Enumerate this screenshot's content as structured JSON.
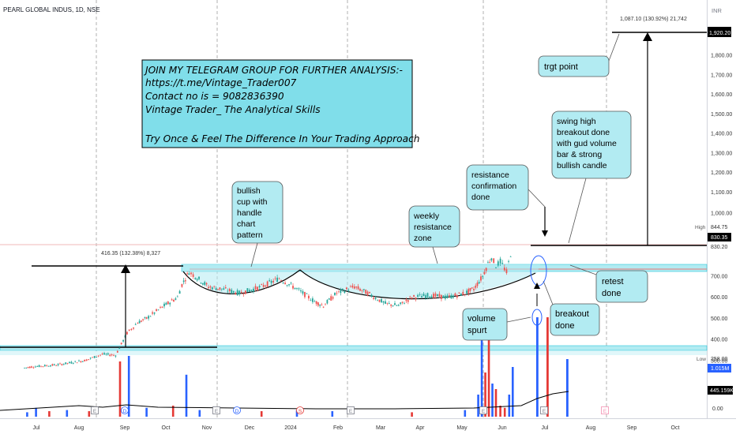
{
  "header": {
    "symbol": "PEARL GLOBAL INDUS, 1D, NSE",
    "currency": "INR"
  },
  "chart_data": {
    "type": "candlestick",
    "y_ticks": [
      "1,800.00",
      "1,700.00",
      "1,600.00",
      "1,500.00",
      "1,400.00",
      "1,300.00",
      "1,200.00",
      "1,100.00",
      "1,000.00",
      "700.00",
      "600.00",
      "500.00",
      "400.00",
      "300.00"
    ],
    "x_ticks": [
      "Jul",
      "Aug",
      "Sep",
      "Oct",
      "Nov",
      "Dec",
      "2024",
      "Feb",
      "Mar",
      "Apr",
      "May",
      "Jun",
      "Jul",
      "Aug",
      "Sep",
      "Oct"
    ],
    "ylim": [
      250,
      2000
    ],
    "volume_tick": "0.00",
    "price_series": [
      {
        "d": -8,
        "p": 265
      },
      {
        "d": 0,
        "p": 270
      },
      {
        "d": 30,
        "p": 280
      },
      {
        "d": 60,
        "p": 300
      },
      {
        "d": 80,
        "p": 330
      },
      {
        "d": 95,
        "p": 325
      },
      {
        "d": 108,
        "p": 430
      },
      {
        "d": 120,
        "p": 480
      },
      {
        "d": 130,
        "p": 500
      },
      {
        "d": 150,
        "p": 560
      },
      {
        "d": 165,
        "p": 600
      },
      {
        "d": 170,
        "p": 660
      },
      {
        "d": 178,
        "p": 720
      },
      {
        "d": 185,
        "p": 700
      },
      {
        "d": 200,
        "p": 650
      },
      {
        "d": 215,
        "p": 640
      },
      {
        "d": 235,
        "p": 620
      },
      {
        "d": 260,
        "p": 650
      },
      {
        "d": 280,
        "p": 690
      },
      {
        "d": 300,
        "p": 640
      },
      {
        "d": 320,
        "p": 580
      },
      {
        "d": 330,
        "p": 560
      },
      {
        "d": 345,
        "p": 620
      },
      {
        "d": 365,
        "p": 650
      },
      {
        "d": 380,
        "p": 620
      },
      {
        "d": 400,
        "p": 570
      },
      {
        "d": 415,
        "p": 560
      },
      {
        "d": 430,
        "p": 600
      },
      {
        "d": 450,
        "p": 610
      },
      {
        "d": 470,
        "p": 600
      },
      {
        "d": 490,
        "p": 620
      },
      {
        "d": 500,
        "p": 640
      },
      {
        "d": 510,
        "p": 700
      },
      {
        "d": 516,
        "p": 760
      },
      {
        "d": 520,
        "p": 790
      },
      {
        "d": 525,
        "p": 750
      },
      {
        "d": 530,
        "p": 770
      },
      {
        "d": 537,
        "p": 720
      },
      {
        "d": 544,
        "p": 850
      }
    ],
    "volume_bars": [
      {
        "d": -5,
        "v": 4,
        "c": "blue"
      },
      {
        "d": 5,
        "v": 8,
        "c": "blue"
      },
      {
        "d": 20,
        "v": 5,
        "c": "red"
      },
      {
        "d": 40,
        "v": 6,
        "c": "blue"
      },
      {
        "d": 65,
        "v": 5,
        "c": "red"
      },
      {
        "d": 100,
        "v": 50,
        "c": "red"
      },
      {
        "d": 110,
        "v": 55,
        "c": "blue"
      },
      {
        "d": 130,
        "v": 8,
        "c": "blue"
      },
      {
        "d": 160,
        "v": 10,
        "c": "red"
      },
      {
        "d": 175,
        "v": 38,
        "c": "blue"
      },
      {
        "d": 190,
        "v": 6,
        "c": "blue"
      },
      {
        "d": 260,
        "v": 5,
        "c": "red"
      },
      {
        "d": 300,
        "v": 6,
        "c": "blue"
      },
      {
        "d": 340,
        "v": 5,
        "c": "blue"
      },
      {
        "d": 430,
        "v": 4,
        "c": "red"
      },
      {
        "d": 490,
        "v": 6,
        "c": "blue"
      },
      {
        "d": 505,
        "v": 20,
        "c": "blue"
      },
      {
        "d": 509,
        "v": 80,
        "c": "blue"
      },
      {
        "d": 513,
        "v": 40,
        "c": "red"
      },
      {
        "d": 517,
        "v": 80,
        "c": "red"
      },
      {
        "d": 521,
        "v": 30,
        "c": "blue"
      },
      {
        "d": 525,
        "v": 25,
        "c": "red"
      },
      {
        "d": 530,
        "v": 10,
        "c": "red"
      },
      {
        "d": 535,
        "v": 8,
        "c": "red"
      },
      {
        "d": 540,
        "v": 20,
        "c": "blue"
      },
      {
        "d": 544,
        "v": 45,
        "c": "blue"
      }
    ],
    "levels": {
      "target": "1,920.20",
      "high_label": "High",
      "high_value": "844.75",
      "box_upper": "830.35",
      "box_lower": "830.20",
      "low_label": "Low",
      "low_value": "258.00",
      "volume_value": "1.015M",
      "volume_ma": "445.159K"
    },
    "measures": [
      {
        "label": "416.35 (132.38%) 8,327"
      },
      {
        "label": "1,087.10 (130.92%) 21,742"
      }
    ],
    "annotations": {
      "promo": [
        "JOIN MY TELEGRAM  GROUP FOR FURTHER ANALYSIS:-",
        "https://t.me/Vintage_Trader007",
        "Contact no is = 9082836390",
        "Vintage Trader_ The Analytical Skills",
        "",
        "Try Once & Feel The Difference In Your Trading Approach"
      ],
      "cup": [
        "bullish",
        "cup with",
        "handle",
        "chart",
        "pattern"
      ],
      "weekly": [
        "weekly",
        "resistance",
        "zone"
      ],
      "resistance_conf": [
        "resistance",
        "confirmation",
        "done"
      ],
      "swing": [
        "swing high",
        "breakout done",
        "with gud volume",
        "bar & strong",
        "bullish candle"
      ],
      "target": [
        "trgt point"
      ],
      "retest": [
        "retest",
        "done"
      ],
      "breakout": [
        "breakout",
        "done"
      ],
      "volume": [
        "volume",
        "spurt"
      ]
    },
    "event_markers": [
      "E",
      "D",
      "E",
      "D",
      "S",
      "E",
      "E",
      "E",
      "E"
    ]
  }
}
